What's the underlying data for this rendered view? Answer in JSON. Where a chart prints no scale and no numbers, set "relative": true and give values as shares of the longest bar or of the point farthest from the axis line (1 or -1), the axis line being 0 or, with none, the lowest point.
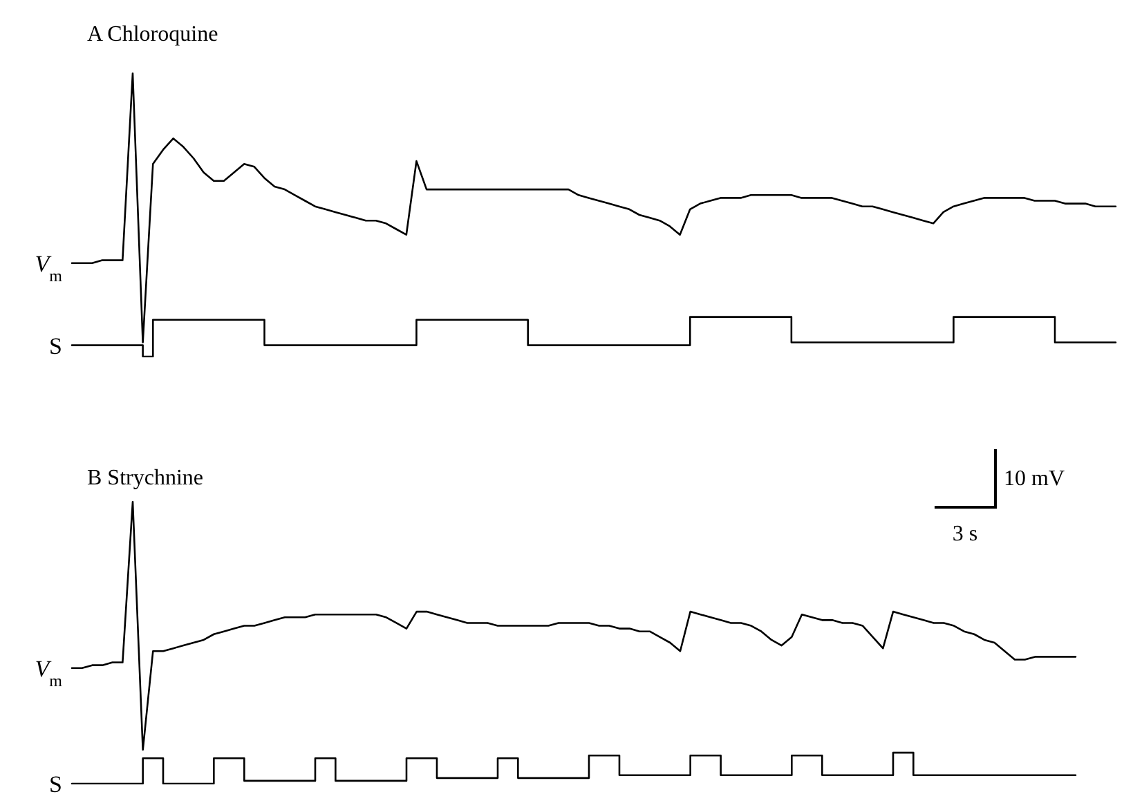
{
  "chart_data": [
    {
      "type": "line",
      "title": "A Chloroquine",
      "relative": true,
      "legend": false,
      "grid": false,
      "marker": "none",
      "line_style": "solid",
      "categories": [
        null,
        null,
        null,
        null,
        null,
        null,
        null,
        null,
        null,
        null,
        null,
        null,
        null,
        null,
        null,
        null,
        null,
        null,
        null,
        null,
        null,
        null,
        null,
        null,
        null,
        null,
        null,
        null,
        null,
        null,
        null,
        null,
        null,
        null,
        null,
        null,
        null,
        null,
        null,
        null,
        null,
        null,
        null,
        null,
        null,
        null,
        null,
        null,
        null,
        null,
        null,
        null,
        null,
        null,
        null,
        null,
        null,
        null,
        null,
        null,
        null,
        null,
        null,
        null,
        null,
        null,
        null,
        null,
        null,
        null,
        null,
        null,
        null,
        null,
        null,
        null,
        null,
        null,
        null,
        null,
        null,
        null,
        null,
        null,
        null,
        null,
        null,
        null,
        null,
        null,
        null,
        null,
        null,
        null,
        null,
        null,
        null,
        null,
        null,
        null,
        null,
        null,
        null,
        null
      ],
      "series": [
        {
          "name": "V$_{m}$",
          "color": "#000000",
          "values": [
            0.33,
            0.33,
            0.33,
            0.34,
            0.34,
            0.34,
            1.0,
            0.05,
            0.68,
            0.73,
            0.77,
            0.74,
            0.7,
            0.65,
            0.62,
            0.62,
            0.65,
            0.68,
            0.67,
            0.63,
            0.6,
            0.59,
            0.57,
            0.55,
            0.53,
            0.52,
            0.51,
            0.5,
            0.49,
            0.48,
            0.48,
            0.47,
            0.45,
            0.43,
            0.69,
            0.59,
            0.59,
            0.59,
            0.59,
            0.59,
            0.59,
            0.59,
            0.59,
            0.59,
            0.59,
            0.59,
            0.59,
            0.59,
            0.59,
            0.59,
            0.57,
            0.56,
            0.55,
            0.54,
            0.53,
            0.52,
            0.5,
            0.49,
            0.48,
            0.46,
            0.43,
            0.52,
            0.54,
            0.55,
            0.56,
            0.56,
            0.56,
            0.57,
            0.57,
            0.57,
            0.57,
            0.57,
            0.56,
            0.56,
            0.56,
            0.56,
            0.55,
            0.54,
            0.53,
            0.53,
            0.52,
            0.51,
            0.5,
            0.49,
            0.48,
            0.47,
            0.51,
            0.53,
            0.54,
            0.55,
            0.56,
            0.56,
            0.56,
            0.56,
            0.56,
            0.55,
            0.55,
            0.55,
            0.54,
            0.54,
            0.54,
            0.53,
            0.53,
            0.53
          ]
        },
        {
          "name": "S",
          "type": "step",
          "color": "#000000",
          "values": [
            0.04,
            0.04,
            0.04,
            0.04,
            0.04,
            0.04,
            0.04,
            0,
            0.13,
            0.13,
            0.13,
            0.13,
            0.13,
            0.13,
            0.13,
            0.13,
            0.13,
            0.13,
            0.13,
            0.04,
            0.04,
            0.04,
            0.04,
            0.04,
            0.04,
            0.04,
            0.04,
            0.04,
            0.04,
            0.04,
            0.04,
            0.04,
            0.04,
            0.04,
            0.13,
            0.13,
            0.13,
            0.13,
            0.13,
            0.13,
            0.13,
            0.13,
            0.13,
            0.13,
            0.13,
            0.04,
            0.04,
            0.04,
            0.04,
            0.04,
            0.04,
            0.04,
            0.04,
            0.04,
            0.04,
            0.04,
            0.04,
            0.04,
            0.04,
            0.04,
            0.04,
            0.14,
            0.14,
            0.14,
            0.14,
            0.14,
            0.14,
            0.14,
            0.14,
            0.14,
            0.14,
            0.05,
            0.05,
            0.05,
            0.05,
            0.05,
            0.05,
            0.05,
            0.05,
            0.05,
            0.05,
            0.05,
            0.05,
            0.05,
            0.05,
            0.05,
            0.05,
            0.14,
            0.14,
            0.14,
            0.14,
            0.14,
            0.14,
            0.14,
            0.14,
            0.14,
            0.14,
            0.05,
            0.05,
            0.05,
            0.05,
            0.05,
            0.05,
            0.05
          ]
        }
      ]
    },
    {
      "type": "line",
      "title": "B Strychnine",
      "relative": true,
      "legend": false,
      "grid": false,
      "marker": "none",
      "line_style": "solid",
      "annotations": [
        "10 mV",
        "3 s"
      ],
      "categories": [
        null,
        null,
        null,
        null,
        null,
        null,
        null,
        null,
        null,
        null,
        null,
        null,
        null,
        null,
        null,
        null,
        null,
        null,
        null,
        null,
        null,
        null,
        null,
        null,
        null,
        null,
        null,
        null,
        null,
        null,
        null,
        null,
        null,
        null,
        null,
        null,
        null,
        null,
        null,
        null,
        null,
        null,
        null,
        null,
        null,
        null,
        null,
        null,
        null,
        null,
        null,
        null,
        null,
        null,
        null,
        null,
        null,
        null,
        null,
        null,
        null,
        null,
        null,
        null,
        null,
        null,
        null,
        null,
        null,
        null,
        null,
        null,
        null,
        null,
        null,
        null,
        null,
        null,
        null,
        null,
        null,
        null,
        null,
        null,
        null,
        null,
        null,
        null,
        null,
        null,
        null,
        null,
        null,
        null,
        null,
        null,
        null,
        null,
        null,
        null
      ],
      "series": [
        {
          "name": "V$_{m}$",
          "color": "#000000",
          "values": [
            0.41,
            0.41,
            0.42,
            0.42,
            0.43,
            0.43,
            1.0,
            0.12,
            0.47,
            0.47,
            0.48,
            0.49,
            0.5,
            0.51,
            0.53,
            0.54,
            0.55,
            0.56,
            0.56,
            0.57,
            0.58,
            0.59,
            0.59,
            0.59,
            0.6,
            0.6,
            0.6,
            0.6,
            0.6,
            0.6,
            0.6,
            0.59,
            0.57,
            0.55,
            0.61,
            0.61,
            0.6,
            0.59,
            0.58,
            0.57,
            0.57,
            0.57,
            0.56,
            0.56,
            0.56,
            0.56,
            0.56,
            0.56,
            0.57,
            0.57,
            0.57,
            0.57,
            0.56,
            0.56,
            0.55,
            0.55,
            0.54,
            0.54,
            0.52,
            0.5,
            0.47,
            0.61,
            0.6,
            0.59,
            0.58,
            0.57,
            0.57,
            0.56,
            0.54,
            0.51,
            0.49,
            0.52,
            0.6,
            0.59,
            0.58,
            0.58,
            0.57,
            0.57,
            0.56,
            0.52,
            0.48,
            0.61,
            0.6,
            0.59,
            0.58,
            0.57,
            0.57,
            0.56,
            0.54,
            0.53,
            0.51,
            0.5,
            0.47,
            0.44,
            0.44,
            0.45,
            0.45,
            0.45,
            0.45,
            0.45
          ]
        },
        {
          "name": "S",
          "type": "step",
          "color": "#000000",
          "values": [
            0,
            0,
            0,
            0,
            0,
            0,
            0,
            0.09,
            0.09,
            0,
            0,
            0,
            0,
            0,
            0.09,
            0.09,
            0.09,
            0.01,
            0.01,
            0.01,
            0.01,
            0.01,
            0.01,
            0.01,
            0.09,
            0.09,
            0.01,
            0.01,
            0.01,
            0.01,
            0.01,
            0.01,
            0.01,
            0.09,
            0.09,
            0.09,
            0.02,
            0.02,
            0.02,
            0.02,
            0.02,
            0.02,
            0.09,
            0.09,
            0.02,
            0.02,
            0.02,
            0.02,
            0.02,
            0.02,
            0.02,
            0.1,
            0.1,
            0.1,
            0.03,
            0.03,
            0.03,
            0.03,
            0.03,
            0.03,
            0.03,
            0.1,
            0.1,
            0.1,
            0.03,
            0.03,
            0.03,
            0.03,
            0.03,
            0.03,
            0.03,
            0.1,
            0.1,
            0.1,
            0.03,
            0.03,
            0.03,
            0.03,
            0.03,
            0.03,
            0.03,
            0.11,
            0.11,
            0.03,
            0.03,
            0.03,
            0.03,
            0.03,
            0.03,
            0.03,
            0.03,
            0.03,
            0.03,
            0.03,
            0.03,
            0.03,
            0.03,
            0.03,
            0.03,
            0.03
          ]
        }
      ]
    }
  ]
}
